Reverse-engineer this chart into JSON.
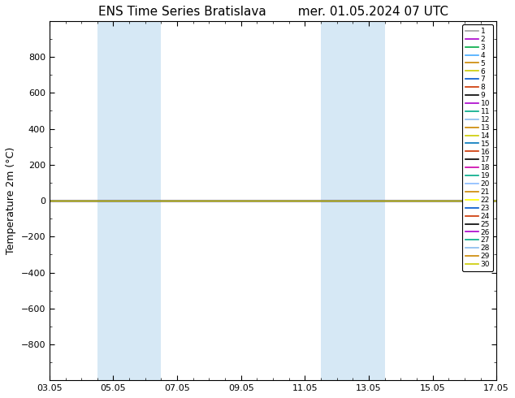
{
  "title": "ENS Time Series Bratislava",
  "title2": "mer. 01.05.2024 07 UTC",
  "ylabel": "Temperature 2m (°C)",
  "ylim_top": -1000,
  "ylim_bottom": 1000,
  "yticks": [
    -800,
    -600,
    -400,
    -200,
    0,
    200,
    400,
    600,
    800
  ],
  "xtick_labels": [
    "03.05",
    "05.05",
    "07.05",
    "09.05",
    "11.05",
    "13.05",
    "15.05",
    "17.05"
  ],
  "xtick_vals": [
    0,
    2,
    4,
    6,
    8,
    10,
    12,
    14
  ],
  "shaded_regions": [
    [
      1.5,
      2.5
    ],
    [
      2.5,
      3.5
    ],
    [
      8.5,
      9.5
    ],
    [
      9.5,
      10.5
    ]
  ],
  "shaded_color": "#d6e8f5",
  "num_members": 30,
  "member_colors": [
    "#a0a0a0",
    "#aa00cc",
    "#00aa44",
    "#44aaff",
    "#cc8800",
    "#cccc00",
    "#0055cc",
    "#cc3300",
    "#000000",
    "#aa00cc",
    "#00aa88",
    "#88bbee",
    "#cc8800",
    "#cccc00",
    "#0077bb",
    "#cc3300",
    "#000000",
    "#cc00aa",
    "#00aa88",
    "#88bbff",
    "#cc8800",
    "#ffff00",
    "#0055cc",
    "#cc3300",
    "#000000",
    "#aa00cc",
    "#00aa88",
    "#88bbee",
    "#cc8800",
    "#cccc00"
  ],
  "legend_labels": [
    "1",
    "2",
    "3",
    "4",
    "5",
    "6",
    "7",
    "8",
    "9",
    "10",
    "11",
    "12",
    "13",
    "14",
    "15",
    "16",
    "17",
    "18",
    "19",
    "20",
    "21",
    "22",
    "23",
    "24",
    "25",
    "26",
    "27",
    "28",
    "29",
    "30"
  ],
  "bg_color": "#ffffff",
  "title_fontsize": 11,
  "tick_fontsize": 8,
  "ylabel_fontsize": 9,
  "legend_fontsize": 6.5
}
